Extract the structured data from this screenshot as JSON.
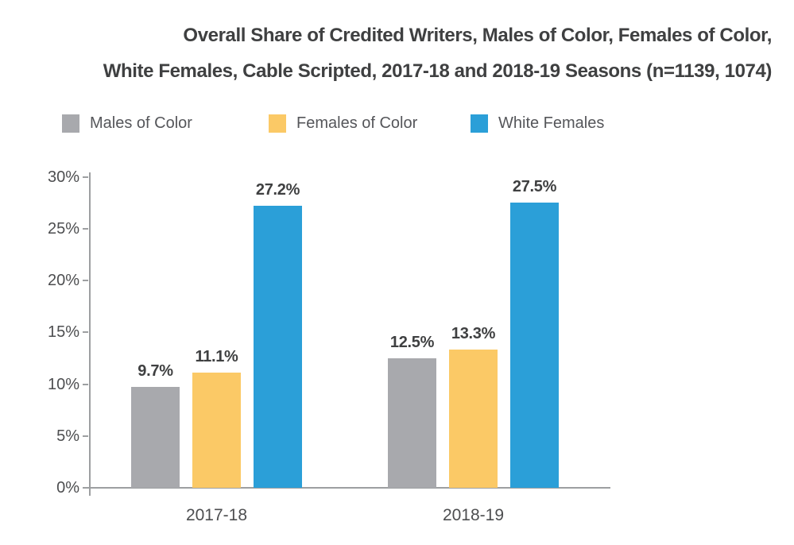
{
  "title": {
    "line1": "Overall Share of Credited Writers, Males of Color, Females of Color,",
    "line2": "White Females, Cable Scripted, 2017-18 and 2018-19 Seasons (n=1139, 1074)"
  },
  "legend": {
    "items": [
      {
        "label": "Males of Color",
        "color": "#a8a9ad"
      },
      {
        "label": "Females of Color",
        "color": "#fbc966"
      },
      {
        "label": "White Females",
        "color": "#2b9fd8"
      }
    ]
  },
  "chart_data": {
    "type": "bar",
    "title": "Overall Share of Credited Writers, Males of Color, Females of Color, White Females, Cable Scripted, 2017-18 and 2018-19 Seasons (n=1139, 1074)",
    "categories": [
      "2017-18",
      "2018-19"
    ],
    "series": [
      {
        "name": "Males of Color",
        "color": "#a8a9ad",
        "values": [
          9.7,
          12.5
        ],
        "labels": [
          "9.7%",
          "12.5%"
        ]
      },
      {
        "name": "Females of Color",
        "color": "#fbc966",
        "values": [
          11.1,
          13.3
        ],
        "labels": [
          "11.1%",
          "13.3%"
        ]
      },
      {
        "name": "White Females",
        "color": "#2b9fd8",
        "values": [
          27.2,
          27.5
        ],
        "labels": [
          "27.2%",
          "27.5%"
        ]
      }
    ],
    "xlabel": "",
    "ylabel": "",
    "ylim": [
      0,
      30
    ],
    "y_axis": {
      "tick_values": [
        0,
        5,
        10,
        15,
        20,
        25,
        30
      ],
      "ticks": [
        "0%",
        "5%",
        "10%",
        "15%",
        "20%",
        "25%",
        "30%"
      ]
    },
    "grid": false,
    "legend_position": "top",
    "colors": {
      "axis_line": "#9d9fa1",
      "axis_text": "#4d4e50",
      "title_text": "#3f4041",
      "value_label_text": "#3f4041",
      "legend_text": "#55565a"
    }
  }
}
